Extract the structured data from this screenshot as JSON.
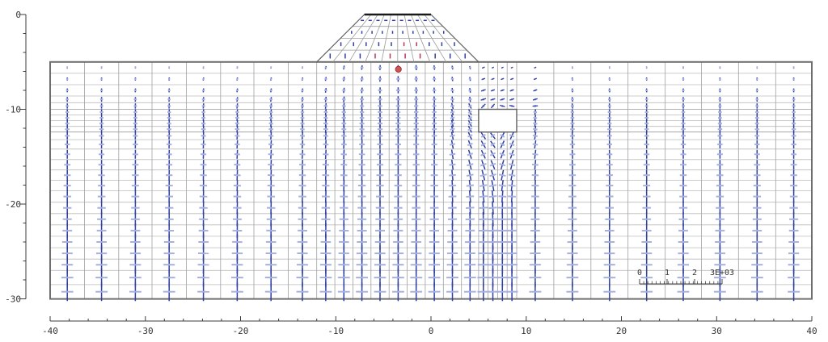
{
  "chart_data": {
    "type": "scatter",
    "subtype": "fem-principal-stress-crosses",
    "title": "",
    "xlabel": "",
    "ylabel": "",
    "xlim": [
      -40,
      40
    ],
    "ylim": [
      -30,
      0
    ],
    "x_ticks": [
      -40,
      -30,
      -20,
      -10,
      0,
      10,
      20,
      30,
      40
    ],
    "y_ticks": [
      0,
      -10,
      -20,
      -30
    ],
    "x_minor_step": 2,
    "y_minor_step": 2,
    "grid": "fem-mesh",
    "legend_position": "bottom-right",
    "scale_bar": {
      "labels": [
        "0",
        "1",
        "2",
        "3E+03"
      ]
    },
    "mesh": {
      "surface_y": -5,
      "bottom_y": -30,
      "columns_x": [
        -40,
        -36.4,
        -32.8,
        -29.3,
        -25.7,
        -22.1,
        -18.6,
        -15,
        -12,
        -10.1,
        -8.2,
        -6.3,
        -4.4,
        -2.5,
        -0.6,
        1.3,
        3.2,
        5,
        6,
        7,
        8,
        9,
        12.9,
        16.8,
        20.7,
        24.6,
        28.4,
        32.3,
        36.2,
        40
      ],
      "rows_y": [
        -5,
        -6.2,
        -7.4,
        -8.6,
        -9.3,
        -10,
        -10.6,
        -11.2,
        -11.8,
        -12.4,
        -13.2,
        -14.2,
        -15.3,
        -16.4,
        -17.5,
        -18.6,
        -19.8,
        -21,
        -22.2,
        -23.4,
        -24.6,
        -25.8,
        -27,
        -28.5,
        -30
      ],
      "dark_rows_y": [
        -10,
        -12.4
      ]
    },
    "embankment": {
      "top_y": 0,
      "base_y": -5,
      "top_left_x": -7,
      "top_right_x": 0,
      "base_left_x": -12,
      "base_right_x": 5,
      "n_columns": 10,
      "n_rows": 4,
      "red_cells": [
        [
          3,
          3
        ],
        [
          4,
          3
        ],
        [
          5,
          3
        ],
        [
          6,
          3
        ],
        [
          5,
          2
        ],
        [
          6,
          2
        ]
      ]
    },
    "hole": {
      "x1": 5,
      "x2": 9,
      "y1": -10,
      "y2": -12.4
    },
    "stress_point": {
      "x": -3.42,
      "y": -5.78
    }
  },
  "colors": {
    "axis": "#3c3c3c",
    "axis_text": "#333333",
    "mesh_row": "#bbbbbb",
    "mesh_row_dark": "#999999",
    "mesh_col": "#a0a0a0",
    "mesh_border": "#6e6e6e",
    "emb_fan": "#9b9b9b",
    "emb_side": "#606060",
    "emb_top": "#1a1a1a",
    "hole_border": "#5f5f5f",
    "cross_vertical": "#2f3fa2",
    "cross_horizontal": "#a6b1e1",
    "cross_toe_dark": "#3a4aae",
    "cross_red": "#b43a50",
    "stress_point_fill": "#cb5656",
    "stress_point_stroke": "#a83030",
    "scalebar": "#444444"
  },
  "cross_style": {
    "len_base": 1.7,
    "len_per_depth": 0.92,
    "len_max": 23,
    "h_ratio": 0.64,
    "v_width": 1.5,
    "h_width": 2.0,
    "emb_bonus": 4.0
  }
}
